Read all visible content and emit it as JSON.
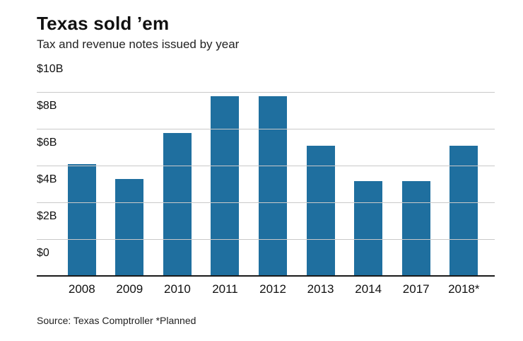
{
  "header": {
    "title": "Texas sold ’em",
    "subtitle": "Tax and revenue notes issued by year"
  },
  "footer": {
    "source": "Source: Texas Comptroller *Planned"
  },
  "chart_data": {
    "type": "bar",
    "title": "Texas sold ’em",
    "subtitle": "Tax and revenue notes issued by year",
    "categories": [
      "2008",
      "2009",
      "2010",
      "2011",
      "2012",
      "2013",
      "2014",
      "2017",
      "2018*"
    ],
    "values": [
      6.1,
      5.3,
      7.8,
      9.8,
      9.8,
      7.1,
      5.2,
      5.2,
      7.1
    ],
    "unit": "billions USD",
    "xlabel": "",
    "ylabel": "",
    "ylim": [
      0,
      10
    ],
    "yticks": [
      0,
      2,
      4,
      6,
      8,
      10
    ],
    "ytick_labels": [
      "$0",
      "$2B",
      "$4B",
      "$6B",
      "$8B",
      "$10B"
    ],
    "grid": true,
    "legend": "none",
    "bar_color": "#1f6f9f",
    "source": "Source: Texas Comptroller *Planned"
  }
}
